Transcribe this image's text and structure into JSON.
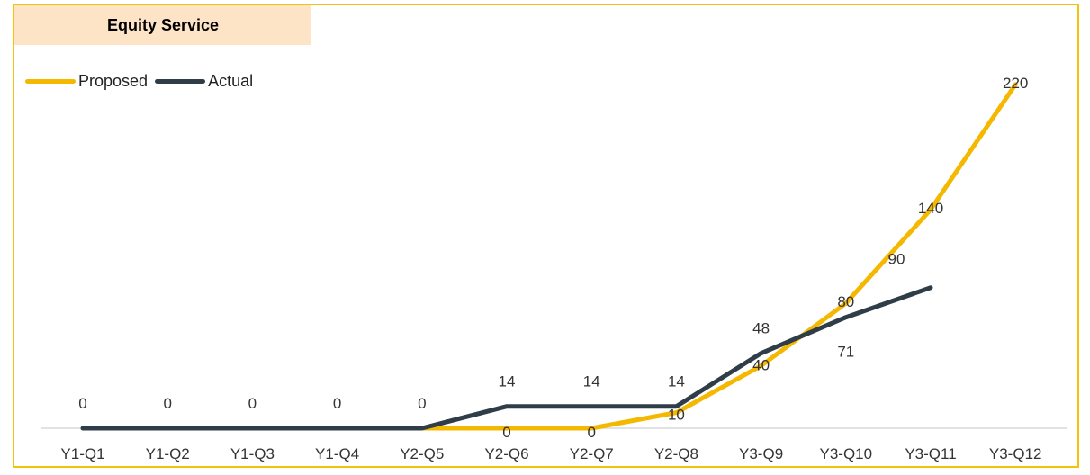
{
  "chart_data": {
    "type": "line",
    "title": "Equity Service",
    "categories": [
      "Y1-Q1",
      "Y1-Q2",
      "Y1-Q3",
      "Y1-Q4",
      "Y2-Q5",
      "Y2-Q6",
      "Y2-Q7",
      "Y2-Q8",
      "Y3-Q9",
      "Y3-Q10",
      "Y3-Q11",
      "Y3-Q12"
    ],
    "series": [
      {
        "name": "Proposed",
        "color": "#f4b800",
        "values": [
          0,
          0,
          0,
          0,
          0,
          0,
          0,
          10,
          40,
          80,
          140,
          220
        ],
        "labels": [
          null,
          null,
          null,
          null,
          null,
          "0",
          "0",
          "10",
          "40",
          "80",
          "140",
          "220"
        ]
      },
      {
        "name": "Actual",
        "color": "#2f3d48",
        "values": [
          0,
          0,
          0,
          0,
          0,
          14,
          14,
          14,
          48,
          71,
          90,
          null
        ],
        "labels": [
          "0",
          "0",
          "0",
          "0",
          "0",
          "14",
          "14",
          "14",
          "48",
          "71",
          "90",
          null
        ]
      }
    ],
    "ylim": [
      0,
      230
    ],
    "grid": false,
    "legend_position": "top-left",
    "border_color": "#f4c20d",
    "title_background": "#fde4c6"
  }
}
